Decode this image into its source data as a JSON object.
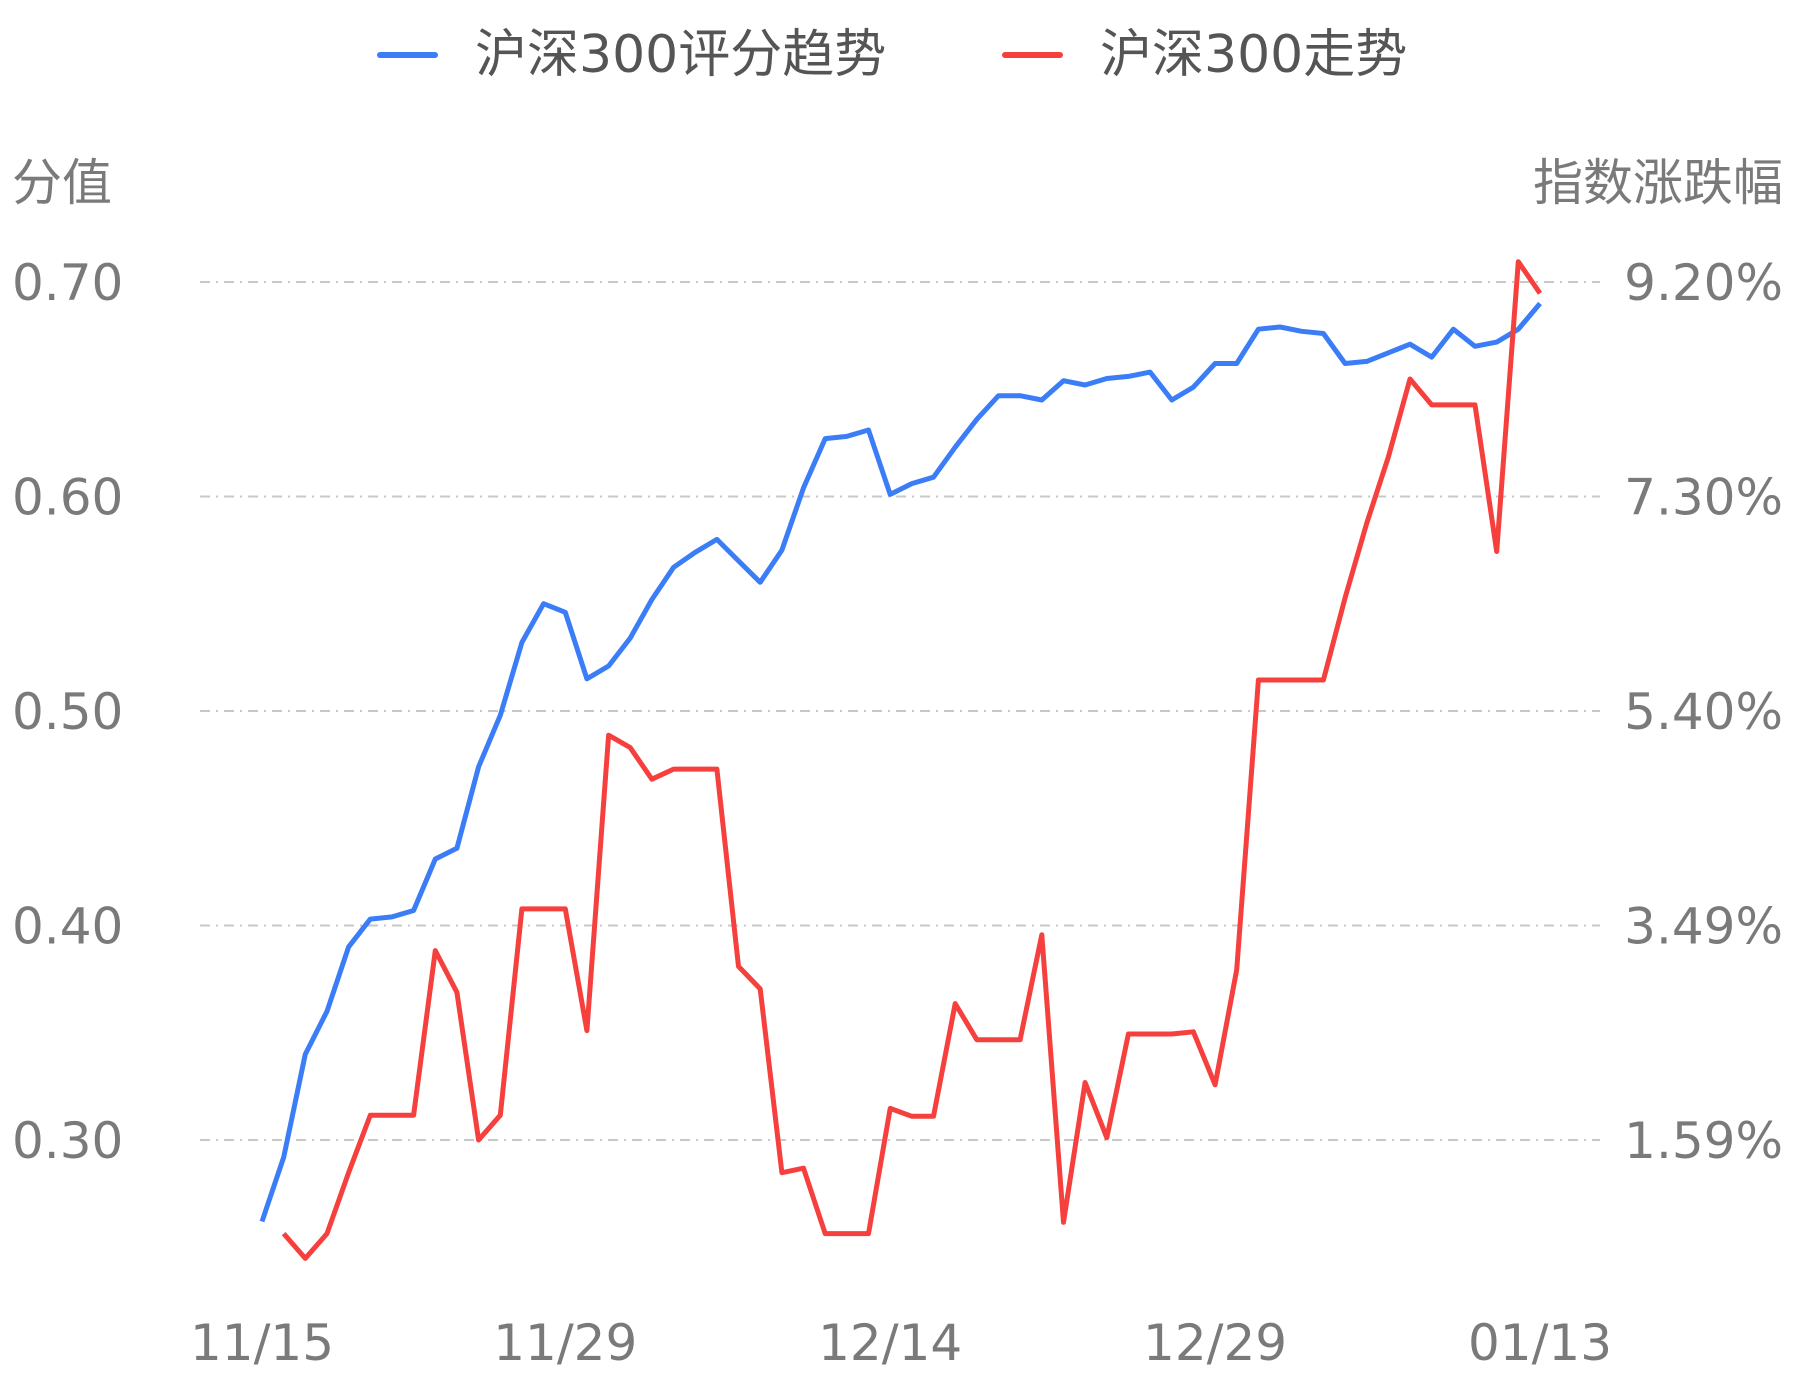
{
  "chart_data": {
    "type": "line",
    "legend": [
      {
        "name": "沪深300评分趋势",
        "color": "#3b7df6"
      },
      {
        "name": "沪深300走势",
        "color": "#f5403d"
      }
    ],
    "legend_position": "top-center",
    "y_left_title": "分值",
    "y_right_title": "指数涨跌幅",
    "y_left_ticks": [
      "0.70",
      "0.60",
      "0.50",
      "0.40",
      "0.30"
    ],
    "y_right_ticks": [
      "9.20%",
      "7.30%",
      "5.40%",
      "3.49%",
      "1.59%"
    ],
    "y_left_range": [
      0.3,
      0.7
    ],
    "y_right_range": [
      1.59,
      9.2
    ],
    "grid": true,
    "x_ticks": [
      {
        "label": "11/15",
        "index": 0
      },
      {
        "label": "11/29",
        "index": 14
      },
      {
        "label": "12/14",
        "index": 29
      },
      {
        "label": "12/29",
        "index": 44
      },
      {
        "label": "01/13",
        "index": 59
      }
    ],
    "x_count": 60,
    "series": [
      {
        "name": "沪深300评分趋势",
        "axis": "left",
        "color": "#3b7df6",
        "start_index": 0,
        "values": [
          0.262,
          0.292,
          0.34,
          0.36,
          0.39,
          0.403,
          0.404,
          0.407,
          0.431,
          0.436,
          0.474,
          0.498,
          0.532,
          0.55,
          0.546,
          0.515,
          0.521,
          0.534,
          0.552,
          0.567,
          0.574,
          0.58,
          0.57,
          0.56,
          0.575,
          0.604,
          0.627,
          0.628,
          0.631,
          0.601,
          0.606,
          0.609,
          0.623,
          0.636,
          0.647,
          0.647,
          0.645,
          0.654,
          0.652,
          0.655,
          0.656,
          0.658,
          0.645,
          0.651,
          0.662,
          0.662,
          0.678,
          0.679,
          0.677,
          0.676,
          0.662,
          0.663,
          0.667,
          0.671,
          0.665,
          0.678,
          0.67,
          0.672,
          0.678,
          0.69
        ]
      },
      {
        "name": "沪深300走势",
        "axis": "right",
        "color": "#f5403d",
        "start_index": 1,
        "values": [
          0.76,
          0.54,
          0.76,
          1.3,
          1.81,
          1.81,
          1.81,
          3.27,
          2.9,
          1.59,
          1.81,
          3.64,
          3.64,
          3.64,
          2.56,
          5.18,
          5.07,
          4.79,
          4.88,
          4.88,
          4.88,
          3.13,
          2.93,
          1.3,
          1.34,
          0.76,
          0.76,
          0.76,
          1.87,
          1.8,
          1.8,
          2.8,
          2.48,
          2.48,
          2.48,
          3.41,
          0.86,
          2.1,
          1.61,
          2.53,
          2.53,
          2.53,
          2.55,
          2.08,
          3.1,
          5.67,
          5.67,
          5.67,
          5.67,
          6.4,
          7.06,
          7.65,
          8.34,
          8.11,
          8.11,
          8.11,
          6.81,
          9.38,
          9.1
        ]
      }
    ]
  }
}
